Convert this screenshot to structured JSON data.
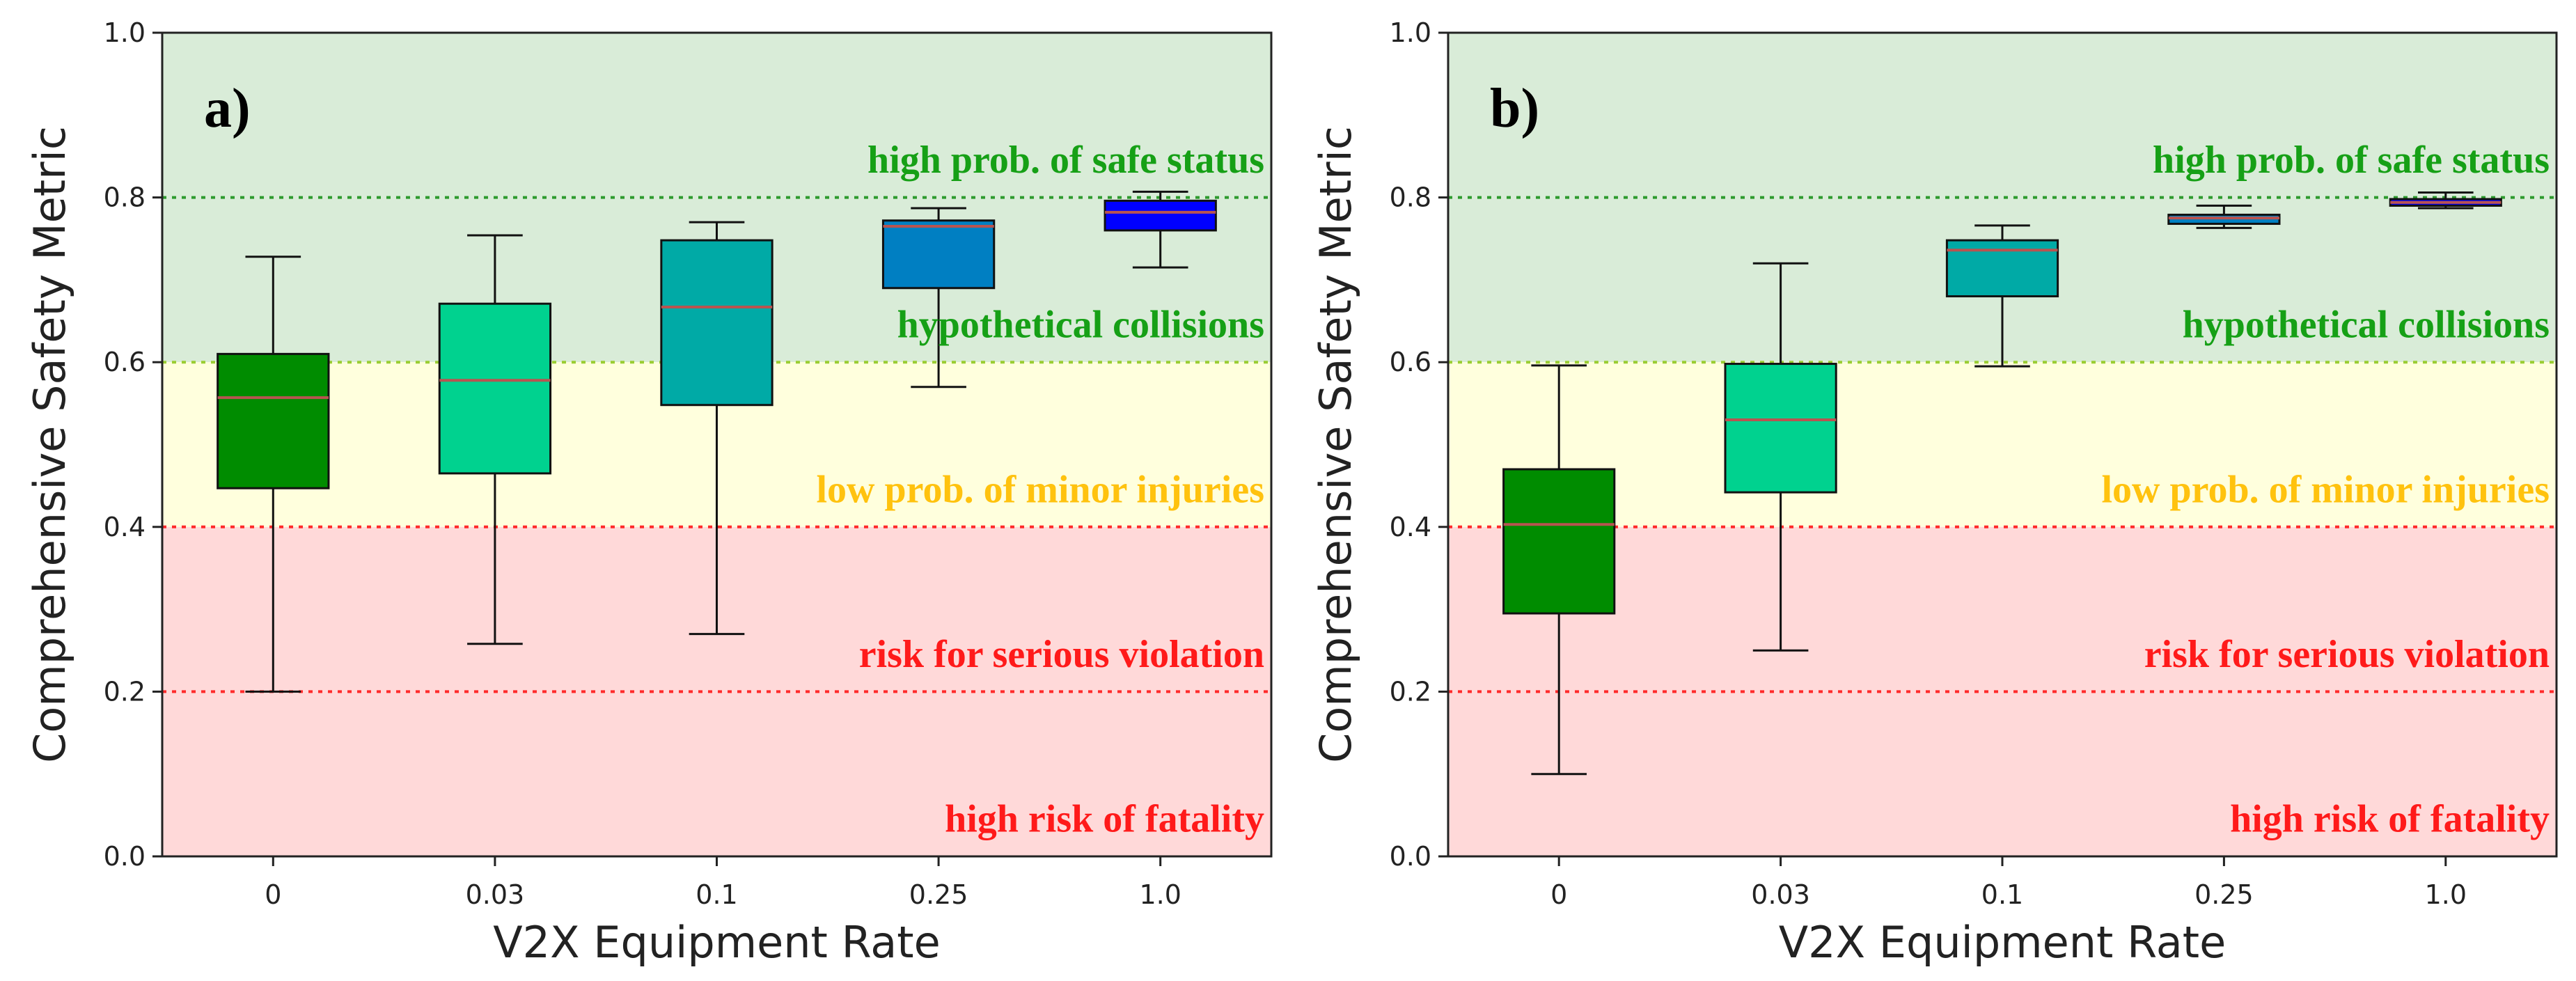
{
  "chart_data": [
    {
      "type": "box",
      "panel_label": "a)",
      "xlabel": "V2X Equipment Rate",
      "ylabel": "Comprehensive Safety Metric",
      "categories": [
        "0",
        "0.03",
        "0.1",
        "0.25",
        "1.0"
      ],
      "ylim": [
        0.0,
        1.0
      ],
      "yticks": [
        "0.0",
        "0.2",
        "0.4",
        "0.6",
        "0.8",
        "1.0"
      ],
      "boxes": [
        {
          "category": "0",
          "whisker_low": 0.2,
          "q1": 0.447,
          "median": 0.557,
          "q3": 0.61,
          "whisker_high": 0.728,
          "color": "#008C00"
        },
        {
          "category": "0.03",
          "whisker_low": 0.258,
          "q1": 0.465,
          "median": 0.578,
          "q3": 0.671,
          "whisker_high": 0.754,
          "color": "#00D28F"
        },
        {
          "category": "0.1",
          "whisker_low": 0.27,
          "q1": 0.548,
          "median": 0.667,
          "q3": 0.748,
          "whisker_high": 0.77,
          "color": "#00AAA6"
        },
        {
          "category": "0.25",
          "whisker_low": 0.57,
          "q1": 0.69,
          "median": 0.765,
          "q3": 0.772,
          "whisker_high": 0.787,
          "color": "#007FC2"
        },
        {
          "category": "1.0",
          "whisker_low": 0.715,
          "q1": 0.76,
          "median": 0.782,
          "q3": 0.796,
          "whisker_high": 0.807,
          "color": "#0000FF"
        }
      ]
    },
    {
      "type": "box",
      "panel_label": "b)",
      "xlabel": "V2X Equipment Rate",
      "ylabel": "Comprehensive Safety Metric",
      "categories": [
        "0",
        "0.03",
        "0.1",
        "0.25",
        "1.0"
      ],
      "ylim": [
        0.0,
        1.0
      ],
      "yticks": [
        "0.0",
        "0.2",
        "0.4",
        "0.6",
        "0.8",
        "1.0"
      ],
      "boxes": [
        {
          "category": "0",
          "whisker_low": 0.1,
          "q1": 0.295,
          "median": 0.403,
          "q3": 0.47,
          "whisker_high": 0.596,
          "color": "#008C00"
        },
        {
          "category": "0.03",
          "whisker_low": 0.25,
          "q1": 0.442,
          "median": 0.53,
          "q3": 0.598,
          "whisker_high": 0.72,
          "color": "#00D28F"
        },
        {
          "category": "0.1",
          "whisker_low": 0.595,
          "q1": 0.68,
          "median": 0.736,
          "q3": 0.748,
          "whisker_high": 0.766,
          "color": "#00AAA6"
        },
        {
          "category": "0.25",
          "whisker_low": 0.763,
          "q1": 0.768,
          "median": 0.775,
          "q3": 0.779,
          "whisker_high": 0.79,
          "color": "#007FC2"
        },
        {
          "category": "1.0",
          "whisker_low": 0.787,
          "q1": 0.79,
          "median": 0.794,
          "q3": 0.798,
          "whisker_high": 0.806,
          "color": "#0000FF"
        }
      ]
    }
  ],
  "zones": [
    {
      "name": "safe",
      "from": 0.6,
      "to": 1.0,
      "fill": "#D9ECD8"
    },
    {
      "name": "minor",
      "from": 0.4,
      "to": 0.6,
      "fill": "#FFFFDD"
    },
    {
      "name": "risk",
      "from": 0.0,
      "to": 0.4,
      "fill": "#FFD9D9"
    }
  ],
  "thresholds": [
    {
      "value": 0.8,
      "color": "#2E9A2E"
    },
    {
      "value": 0.6,
      "color": "#9ACD32"
    },
    {
      "value": 0.4,
      "color": "#FF2A2A"
    },
    {
      "value": 0.2,
      "color": "#FF2A2A"
    }
  ],
  "zone_labels": [
    {
      "text": "high prob. of safe status",
      "value": 0.83,
      "color": "#16A016"
    },
    {
      "text": "hypothetical collisions",
      "value": 0.63,
      "color": "#16A016"
    },
    {
      "text": "low prob. of minor injuries",
      "value": 0.43,
      "color": "#FFC20E"
    },
    {
      "text": "risk for serious violation",
      "value": 0.23,
      "color": "#FF1A1A"
    },
    {
      "text": "high risk of fatality",
      "value": 0.03,
      "color": "#FF1A1A"
    }
  ],
  "median_color": "#B85450"
}
